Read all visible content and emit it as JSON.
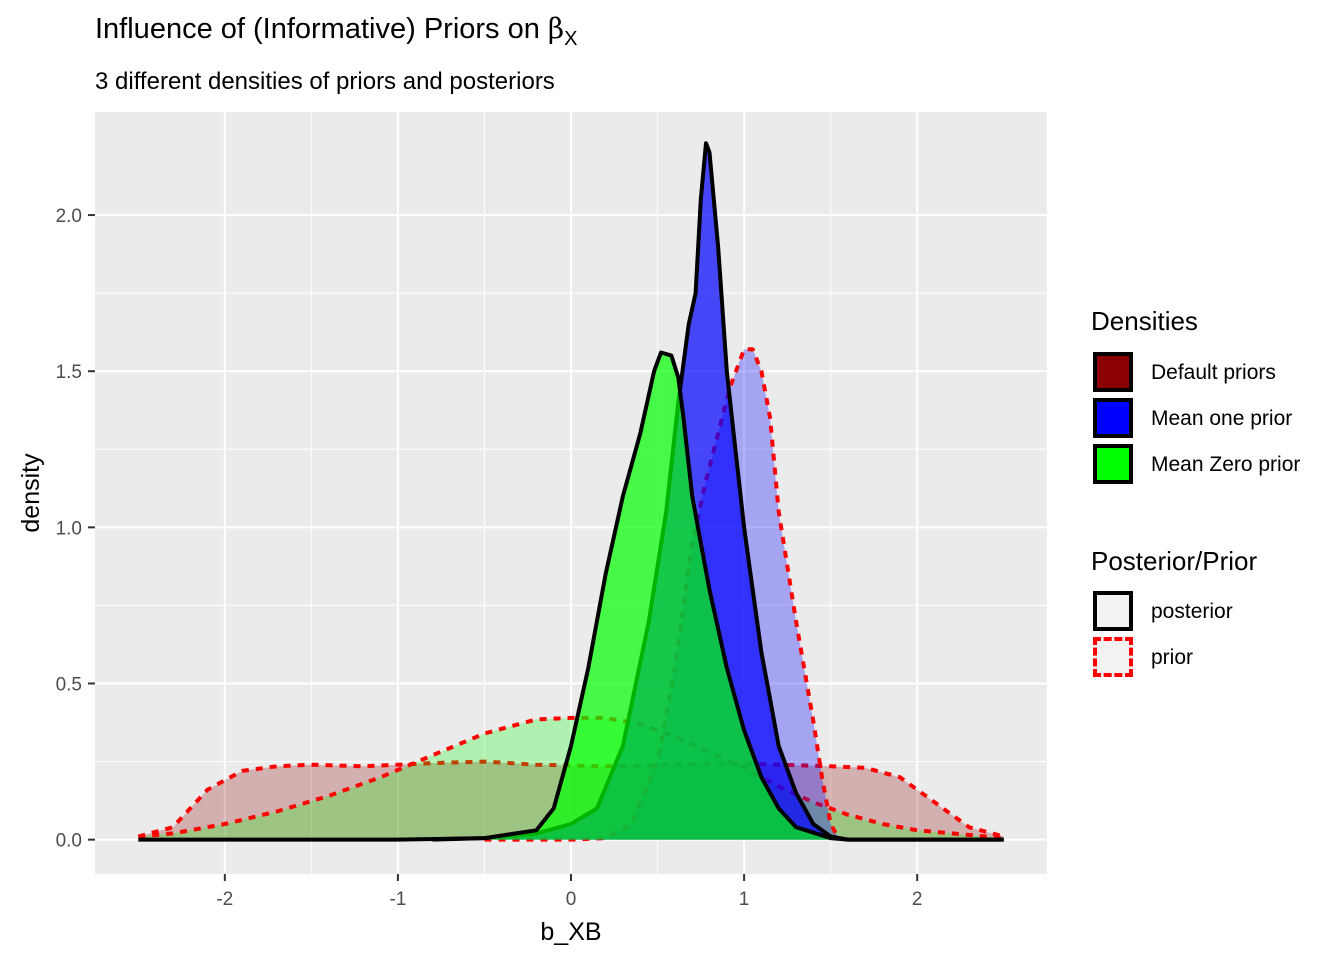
{
  "title_text": "Influence of (Informative) Priors on",
  "title_symbol": "β",
  "title_subscript": "X",
  "subtitle": "3 different densities of priors and posteriors",
  "legend": {
    "fill_title": "Densities",
    "fill_items": [
      {
        "label": "Default priors",
        "color": "#8b0000"
      },
      {
        "label": "Mean one prior",
        "color": "#0000ff"
      },
      {
        "label": "Mean Zero prior",
        "color": "#00ff00"
      }
    ],
    "line_title": "Posterior/Prior",
    "line_items": [
      {
        "label": "posterior",
        "style": "solid",
        "color": "#000000"
      },
      {
        "label": "prior",
        "style": "dashed",
        "color": "#ff0000"
      }
    ]
  },
  "chart_data": {
    "type": "area",
    "xlabel": "b_XB",
    "ylabel": "density",
    "xlim": [
      -2.75,
      2.75
    ],
    "ylim": [
      -0.11,
      2.33
    ],
    "x_ticks": [
      -2,
      -1,
      0,
      1,
      2
    ],
    "x_tick_labels": [
      "-2",
      "-1",
      "0",
      "1",
      "2"
    ],
    "y_ticks": [
      0.0,
      0.5,
      1.0,
      1.5,
      2.0
    ],
    "y_tick_labels": [
      "0.0",
      "0.5",
      "1.0",
      "1.5",
      "2.0"
    ],
    "grid": true,
    "legend_position": "right",
    "series": [
      {
        "name": "Default priors",
        "kind": "prior",
        "fill": "#8b0000",
        "fill_opacity": 0.25,
        "points": [
          [
            -2.5,
            0.01
          ],
          [
            -2.3,
            0.04
          ],
          [
            -2.1,
            0.16
          ],
          [
            -1.9,
            0.22
          ],
          [
            -1.7,
            0.235
          ],
          [
            -1.5,
            0.24
          ],
          [
            -1.2,
            0.235
          ],
          [
            -0.8,
            0.245
          ],
          [
            -0.5,
            0.25
          ],
          [
            -0.2,
            0.24
          ],
          [
            0.2,
            0.235
          ],
          [
            0.6,
            0.24
          ],
          [
            0.9,
            0.245
          ],
          [
            1.2,
            0.24
          ],
          [
            1.5,
            0.235
          ],
          [
            1.7,
            0.23
          ],
          [
            1.9,
            0.2
          ],
          [
            2.1,
            0.12
          ],
          [
            2.3,
            0.04
          ],
          [
            2.5,
            0.01
          ]
        ]
      },
      {
        "name": "Mean Zero prior",
        "kind": "prior",
        "fill": "#00ff00",
        "fill_opacity": 0.25,
        "points": [
          [
            -2.5,
            0.01
          ],
          [
            -2.3,
            0.02
          ],
          [
            -2.0,
            0.05
          ],
          [
            -1.7,
            0.09
          ],
          [
            -1.4,
            0.14
          ],
          [
            -1.1,
            0.2
          ],
          [
            -0.8,
            0.27
          ],
          [
            -0.5,
            0.34
          ],
          [
            -0.2,
            0.385
          ],
          [
            0.0,
            0.39
          ],
          [
            0.2,
            0.39
          ],
          [
            0.4,
            0.37
          ],
          [
            0.6,
            0.33
          ],
          [
            0.8,
            0.28
          ],
          [
            1.0,
            0.23
          ],
          [
            1.2,
            0.17
          ],
          [
            1.4,
            0.12
          ],
          [
            1.6,
            0.08
          ],
          [
            1.8,
            0.05
          ],
          [
            2.0,
            0.03
          ],
          [
            2.2,
            0.02
          ],
          [
            2.5,
            0.005
          ]
        ]
      },
      {
        "name": "Mean one prior",
        "kind": "prior",
        "fill": "#0000ff",
        "fill_opacity": 0.3,
        "points": [
          [
            -0.5,
            0.0
          ],
          [
            0.0,
            0.0
          ],
          [
            0.2,
            0.005
          ],
          [
            0.35,
            0.05
          ],
          [
            0.5,
            0.25
          ],
          [
            0.6,
            0.55
          ],
          [
            0.7,
            0.95
          ],
          [
            0.78,
            1.15
          ],
          [
            0.85,
            1.3
          ],
          [
            0.92,
            1.45
          ],
          [
            1.0,
            1.57
          ],
          [
            1.05,
            1.57
          ],
          [
            1.1,
            1.5
          ],
          [
            1.15,
            1.35
          ],
          [
            1.2,
            1.05
          ],
          [
            1.3,
            0.7
          ],
          [
            1.4,
            0.38
          ],
          [
            1.45,
            0.2
          ],
          [
            1.5,
            0.05
          ],
          [
            1.55,
            0.0
          ]
        ]
      },
      {
        "name": "Mean one prior",
        "kind": "posterior",
        "fill": "#0000ff",
        "fill_opacity": 0.7,
        "points": [
          [
            -0.8,
            0.0
          ],
          [
            -0.5,
            0.005
          ],
          [
            -0.2,
            0.02
          ],
          [
            0.0,
            0.05
          ],
          [
            0.15,
            0.1
          ],
          [
            0.3,
            0.3
          ],
          [
            0.45,
            0.7
          ],
          [
            0.55,
            1.05
          ],
          [
            0.62,
            1.4
          ],
          [
            0.68,
            1.65
          ],
          [
            0.72,
            1.75
          ],
          [
            0.75,
            2.05
          ],
          [
            0.78,
            2.23
          ],
          [
            0.8,
            2.2
          ],
          [
            0.85,
            1.9
          ],
          [
            0.9,
            1.5
          ],
          [
            0.95,
            1.25
          ],
          [
            1.0,
            1.0
          ],
          [
            1.05,
            0.8
          ],
          [
            1.1,
            0.6
          ],
          [
            1.15,
            0.45
          ],
          [
            1.2,
            0.3
          ],
          [
            1.3,
            0.15
          ],
          [
            1.4,
            0.05
          ],
          [
            1.5,
            0.01
          ],
          [
            1.6,
            0.0
          ],
          [
            2.5,
            0.0
          ]
        ]
      },
      {
        "name": "Mean Zero prior",
        "kind": "posterior",
        "fill": "#00ff00",
        "fill_opacity": 0.7,
        "points": [
          [
            -2.5,
            0.0
          ],
          [
            -1.0,
            0.0
          ],
          [
            -0.5,
            0.005
          ],
          [
            -0.2,
            0.03
          ],
          [
            -0.1,
            0.1
          ],
          [
            0.0,
            0.3
          ],
          [
            0.1,
            0.55
          ],
          [
            0.2,
            0.85
          ],
          [
            0.3,
            1.1
          ],
          [
            0.4,
            1.3
          ],
          [
            0.48,
            1.5
          ],
          [
            0.52,
            1.56
          ],
          [
            0.58,
            1.55
          ],
          [
            0.62,
            1.48
          ],
          [
            0.65,
            1.35
          ],
          [
            0.7,
            1.1
          ],
          [
            0.75,
            0.95
          ],
          [
            0.8,
            0.8
          ],
          [
            0.9,
            0.55
          ],
          [
            1.0,
            0.35
          ],
          [
            1.1,
            0.2
          ],
          [
            1.2,
            0.1
          ],
          [
            1.3,
            0.04
          ],
          [
            1.5,
            0.005
          ],
          [
            1.6,
            0.0
          ],
          [
            2.5,
            0.0
          ]
        ]
      }
    ]
  }
}
